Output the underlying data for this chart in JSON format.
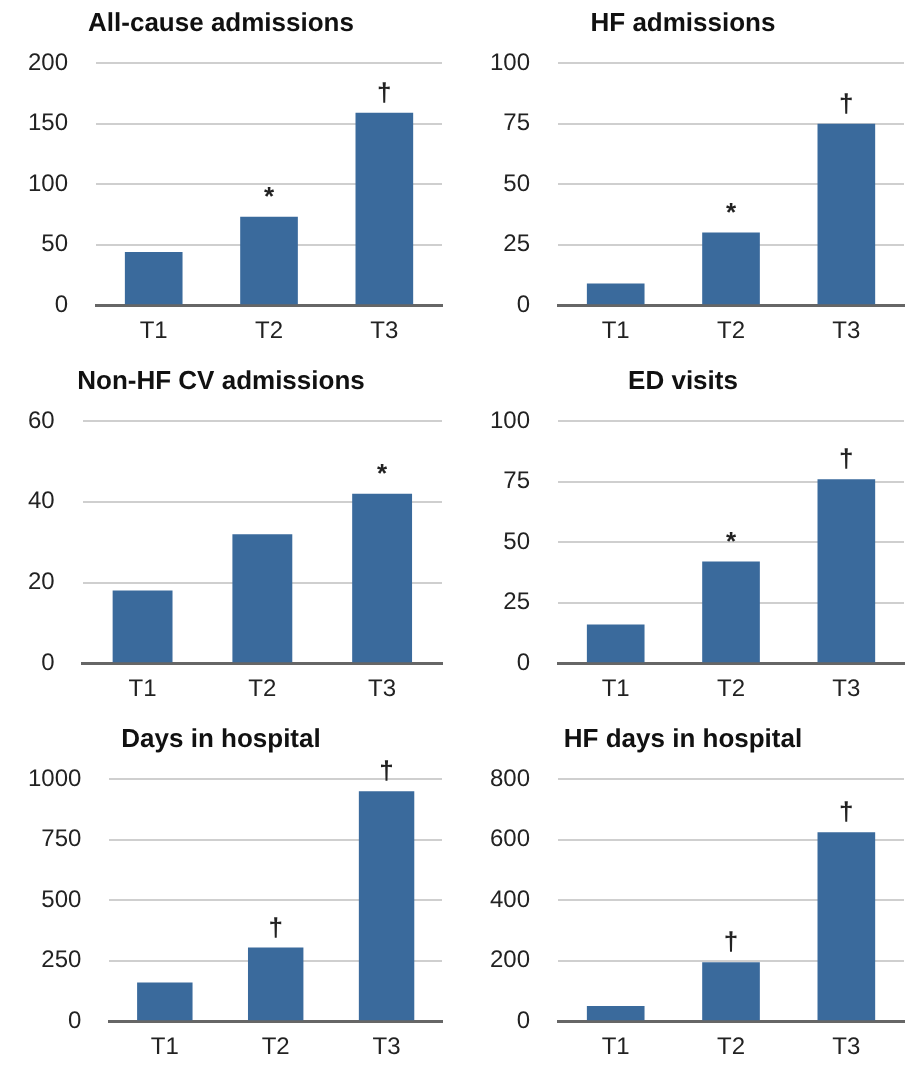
{
  "chart_data": [
    {
      "type": "bar",
      "title": "All-cause admissions",
      "categories": [
        "T1",
        "T2",
        "T3"
      ],
      "values": [
        44,
        73,
        159
      ],
      "color": "#3a6a9c",
      "ylim": [
        0,
        200
      ],
      "yticks": [
        0,
        50,
        100,
        150,
        200
      ],
      "grid": "y",
      "annotations": [
        {
          "text": "*",
          "x": "T2",
          "y": 73
        },
        {
          "text": "†",
          "x": "T3",
          "y": 159
        }
      ]
    },
    {
      "type": "bar",
      "title": "HF admissions",
      "categories": [
        "T1",
        "T2",
        "T3"
      ],
      "values": [
        9,
        30,
        75
      ],
      "color": "#3a6a9c",
      "ylim": [
        0,
        100
      ],
      "yticks": [
        0,
        25,
        50,
        75,
        100
      ],
      "grid": "y",
      "annotations": [
        {
          "text": "*",
          "x": "T2",
          "y": 30
        },
        {
          "text": "†",
          "x": "T3",
          "y": 75
        }
      ]
    },
    {
      "type": "bar",
      "title": "Non-HF CV admissions",
      "categories": [
        "T1",
        "T2",
        "T3"
      ],
      "values": [
        18,
        32,
        42
      ],
      "color": "#3a6a9c",
      "ylim": [
        0,
        60
      ],
      "yticks": [
        0,
        20,
        40,
        60
      ],
      "grid": "y",
      "annotations": [
        {
          "text": "*",
          "x": "T3",
          "y": 42
        }
      ]
    },
    {
      "type": "bar",
      "title": "ED visits",
      "categories": [
        "T1",
        "T2",
        "T3"
      ],
      "values": [
        16,
        42,
        76
      ],
      "color": "#3a6a9c",
      "ylim": [
        0,
        100
      ],
      "yticks": [
        0,
        25,
        50,
        75,
        100
      ],
      "grid": "y",
      "annotations": [
        {
          "text": "*",
          "x": "T2",
          "y": 42
        },
        {
          "text": "†",
          "x": "T3",
          "y": 76
        }
      ]
    },
    {
      "type": "bar",
      "title": "Days in hospital",
      "categories": [
        "T1",
        "T2",
        "T3"
      ],
      "values": [
        160,
        305,
        950
      ],
      "color": "#3a6a9c",
      "ylim": [
        0,
        1000
      ],
      "yticks": [
        0,
        250,
        500,
        750,
        1000
      ],
      "grid": "y",
      "annotations": [
        {
          "text": "†",
          "x": "T2",
          "y": 305
        },
        {
          "text": "†",
          "x": "T3",
          "y": 950
        }
      ]
    },
    {
      "type": "bar",
      "title": "HF days in hospital",
      "categories": [
        "T1",
        "T2",
        "T3"
      ],
      "values": [
        50,
        195,
        625
      ],
      "color": "#3a6a9c",
      "ylim": [
        0,
        800
      ],
      "yticks": [
        0,
        200,
        400,
        600,
        800
      ],
      "grid": "y",
      "annotations": [
        {
          "text": "†",
          "x": "T2",
          "y": 195
        },
        {
          "text": "†",
          "x": "T3",
          "y": 625
        }
      ]
    }
  ]
}
